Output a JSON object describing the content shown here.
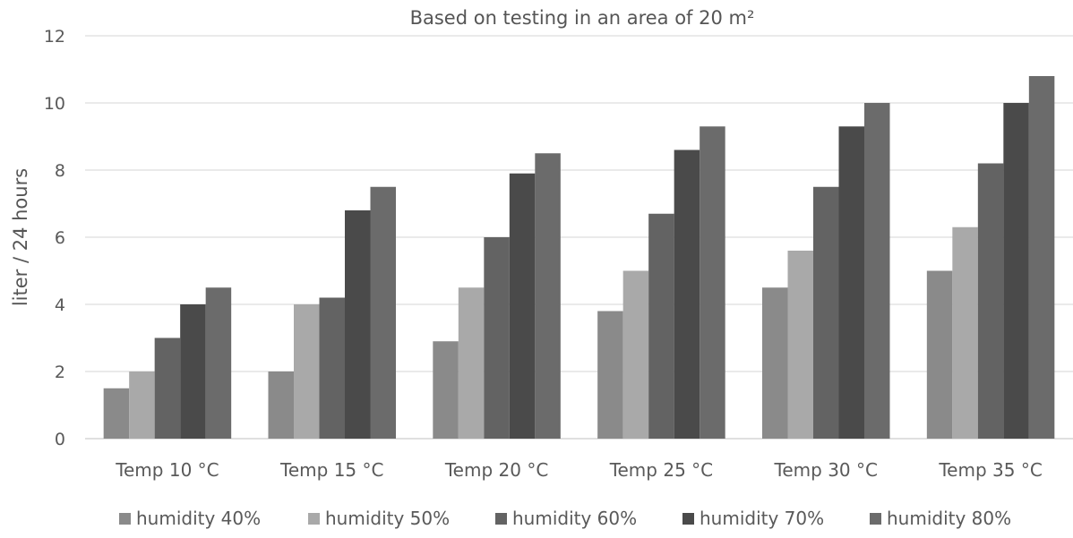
{
  "chart_data": {
    "type": "bar",
    "title": "Based on testing in an area of 20 m²",
    "xlabel": "",
    "ylabel": "liter / 24 hours",
    "ylim": [
      0,
      12
    ],
    "yticks": [
      0,
      2,
      4,
      6,
      8,
      10,
      12
    ],
    "grid": true,
    "legend_position": "bottom",
    "categories": [
      "Temp 10 °C",
      "Temp 15 °C",
      "Temp 20 °C",
      "Temp 25 °C",
      "Temp 30 °C",
      "Temp 35 °C"
    ],
    "series": [
      {
        "name": "humidity 40%",
        "color": "#8a8a8a",
        "values": [
          1.5,
          2.0,
          2.9,
          3.8,
          4.5,
          5.0
        ]
      },
      {
        "name": "humidity 50%",
        "color": "#a9a9a9",
        "values": [
          2.0,
          4.0,
          4.5,
          5.0,
          5.6,
          6.3
        ]
      },
      {
        "name": "humidity 60%",
        "color": "#636363",
        "values": [
          3.0,
          4.2,
          6.0,
          6.7,
          7.5,
          8.2
        ]
      },
      {
        "name": "humidity 70%",
        "color": "#4a4a4a",
        "values": [
          4.0,
          6.8,
          7.9,
          8.6,
          9.3,
          10.0
        ]
      },
      {
        "name": "humidity 80%",
        "color": "#6b6b6b",
        "values": [
          4.5,
          7.5,
          8.5,
          9.3,
          10.0,
          10.8
        ]
      }
    ]
  }
}
